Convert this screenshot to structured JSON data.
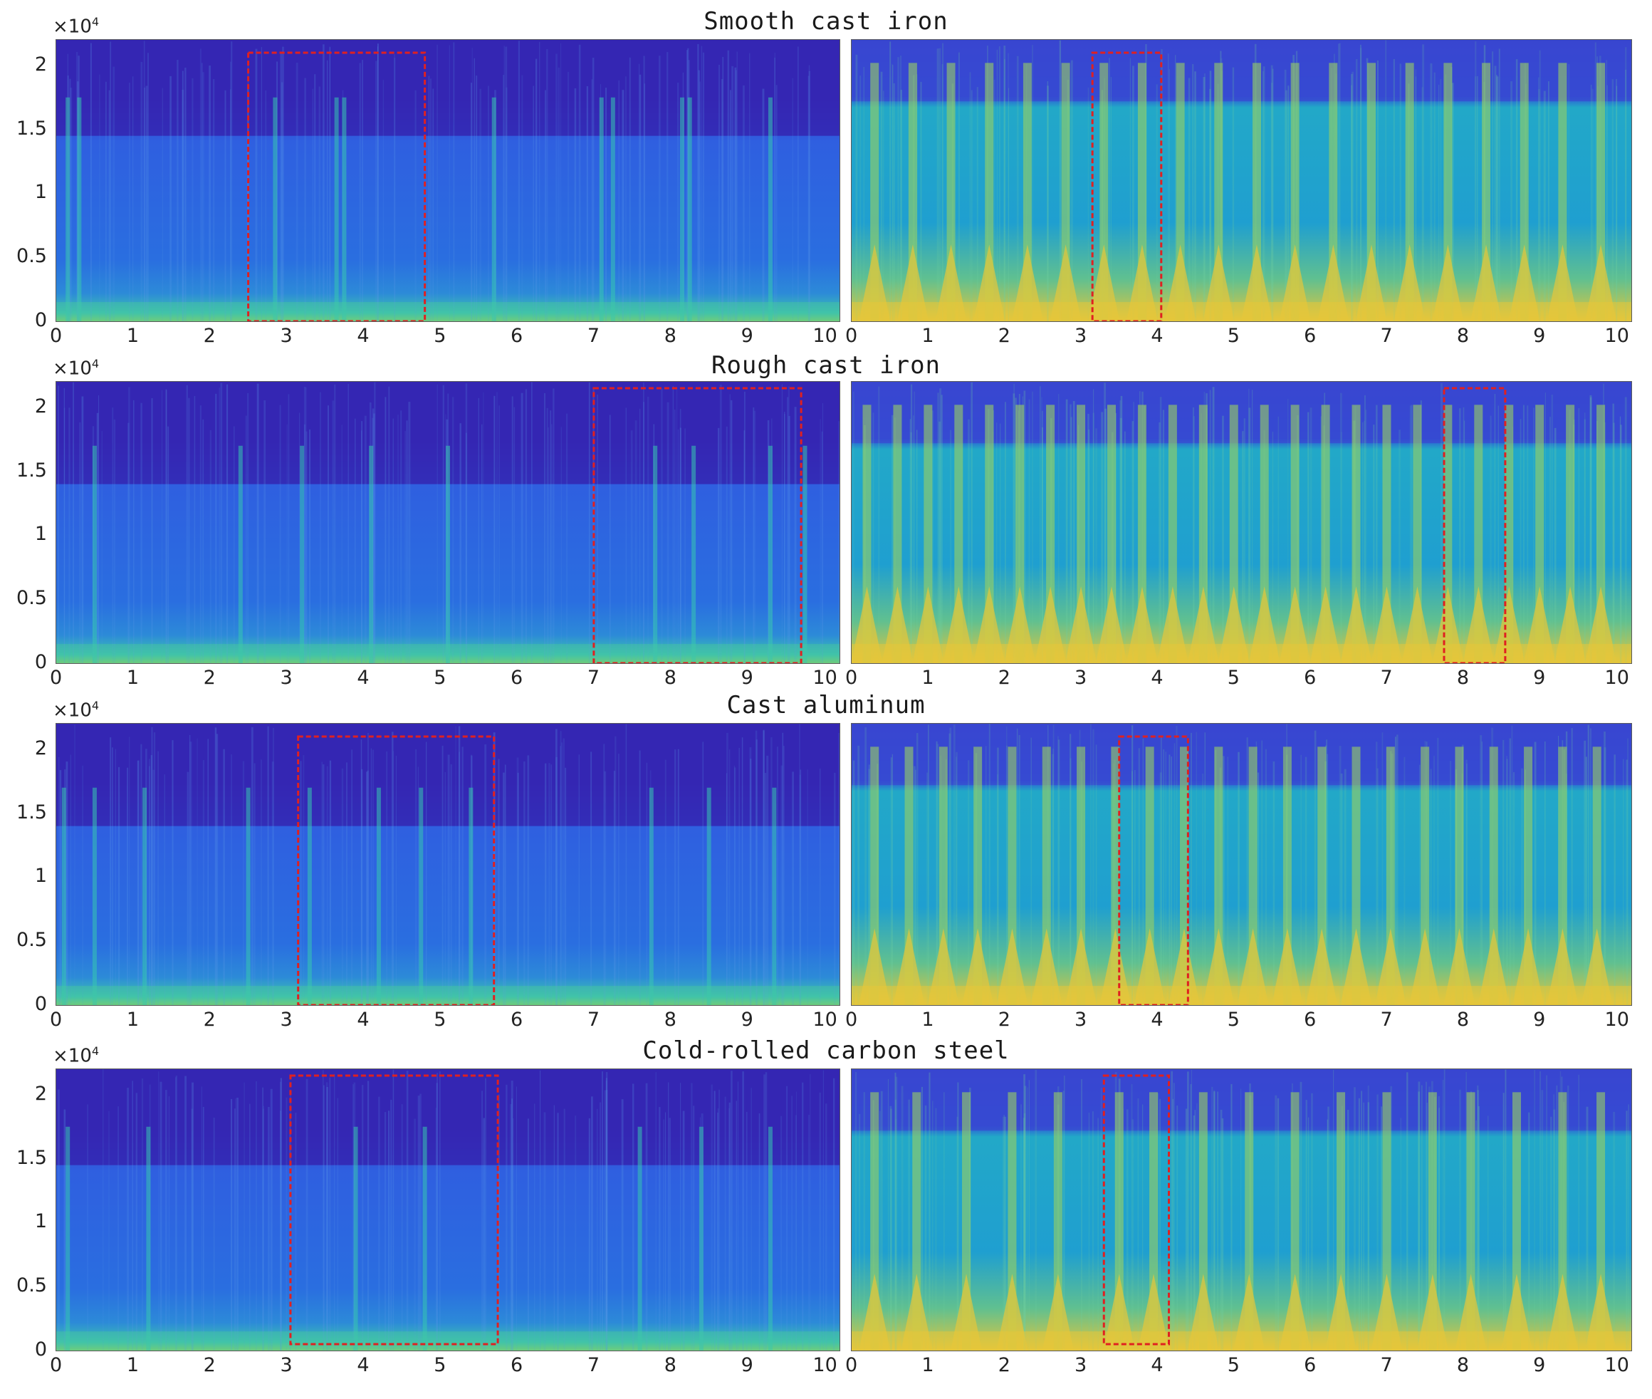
{
  "chart_data": [
    {
      "type": "heatmap",
      "title": "Smooth cast iron",
      "panels": [
        {
          "exponent_label": "×10",
          "exponent": "4",
          "x_ticks": [
            "0",
            "1",
            "2",
            "3",
            "4",
            "5",
            "6",
            "7",
            "8",
            "9",
            "10"
          ],
          "y_ticks": [
            "0",
            "0.5",
            "1",
            "1.5",
            "2"
          ],
          "xlim": [
            0,
            10.2
          ],
          "ylim": [
            0,
            2.2
          ],
          "highlight": {
            "x_start": 2.5,
            "x_end": 4.8,
            "y_start": 0,
            "y_end": 2.1
          },
          "style": "dark",
          "top_edge": 1.45,
          "bursts": [
            0.15,
            0.3,
            2.85,
            3.65,
            3.75,
            5.7,
            7.1,
            7.25,
            8.15,
            8.25,
            9.3
          ]
        },
        {
          "x_ticks": [
            "0",
            "1",
            "2",
            "3",
            "4",
            "5",
            "6",
            "7",
            "8",
            "9",
            "10"
          ],
          "y_ticks": [],
          "xlim": [
            0,
            10.2
          ],
          "ylim": [
            0,
            2.2
          ],
          "highlight": {
            "x_start": 3.15,
            "x_end": 4.05,
            "y_start": 0,
            "y_end": 2.1
          },
          "style": "bright",
          "top_edge": 1.72,
          "bursts": [
            0.3,
            0.8,
            1.3,
            1.8,
            2.3,
            2.8,
            3.3,
            3.8,
            4.3,
            4.8,
            5.3,
            5.8,
            6.3,
            6.8,
            7.3,
            7.8,
            8.3,
            8.8,
            9.3,
            9.8
          ]
        }
      ]
    },
    {
      "type": "heatmap",
      "title": "Rough cast iron",
      "panels": [
        {
          "exponent_label": "×10",
          "exponent": "4",
          "x_ticks": [
            "0",
            "1",
            "2",
            "3",
            "4",
            "5",
            "6",
            "7",
            "8",
            "9",
            "10"
          ],
          "y_ticks": [
            "0",
            "0.5",
            "1",
            "1.5",
            "2"
          ],
          "xlim": [
            0,
            10.2
          ],
          "ylim": [
            0,
            2.2
          ],
          "highlight": {
            "x_start": 7.0,
            "x_end": 9.7,
            "y_start": 0,
            "y_end": 2.15
          },
          "style": "dark",
          "top_edge": 1.4,
          "bursts": [
            0.5,
            2.4,
            3.2,
            4.1,
            5.1,
            7.8,
            8.3,
            9.3,
            9.75
          ]
        },
        {
          "x_ticks": [
            "0",
            "1",
            "2",
            "3",
            "4",
            "5",
            "6",
            "7",
            "8",
            "9",
            "10"
          ],
          "y_ticks": [],
          "xlim": [
            0,
            10.2
          ],
          "ylim": [
            0,
            2.2
          ],
          "highlight": {
            "x_start": 7.75,
            "x_end": 8.55,
            "y_start": 0,
            "y_end": 2.15
          },
          "style": "bright",
          "top_edge": 1.72,
          "bursts": [
            0.2,
            0.6,
            1.0,
            1.4,
            1.8,
            2.2,
            2.6,
            3.0,
            3.4,
            3.8,
            4.2,
            4.6,
            5.0,
            5.4,
            5.8,
            6.2,
            6.6,
            7.0,
            7.4,
            7.8,
            8.2,
            8.6,
            9.0,
            9.4,
            9.8
          ]
        }
      ]
    },
    {
      "type": "heatmap",
      "title": "Cast aluminum",
      "panels": [
        {
          "exponent_label": "×10",
          "exponent": "4",
          "x_ticks": [
            "0",
            "1",
            "2",
            "3",
            "4",
            "5",
            "6",
            "7",
            "8",
            "9",
            "10"
          ],
          "y_ticks": [
            "0",
            "0.5",
            "1",
            "1.5",
            "2"
          ],
          "xlim": [
            0,
            10.2
          ],
          "ylim": [
            0,
            2.2
          ],
          "highlight": {
            "x_start": 3.15,
            "x_end": 5.7,
            "y_start": 0,
            "y_end": 2.1
          },
          "style": "dark",
          "top_edge": 1.4,
          "bursts": [
            0.1,
            0.5,
            1.15,
            2.5,
            3.3,
            4.2,
            4.75,
            5.4,
            7.75,
            8.5,
            9.35
          ]
        },
        {
          "x_ticks": [
            "0",
            "1",
            "2",
            "3",
            "4",
            "5",
            "6",
            "7",
            "8",
            "9",
            "10"
          ],
          "y_ticks": [],
          "xlim": [
            0,
            10.2
          ],
          "ylim": [
            0,
            2.2
          ],
          "highlight": {
            "x_start": 3.5,
            "x_end": 4.4,
            "y_start": 0,
            "y_end": 2.1
          },
          "style": "bright",
          "top_edge": 1.72,
          "bursts": [
            0.3,
            0.75,
            1.2,
            1.65,
            2.1,
            2.55,
            3.0,
            3.45,
            3.9,
            4.35,
            4.8,
            5.25,
            5.7,
            6.15,
            6.6,
            7.05,
            7.5,
            7.95,
            8.4,
            8.85,
            9.3,
            9.75
          ]
        }
      ]
    },
    {
      "type": "heatmap",
      "title": "Cold-rolled carbon steel",
      "panels": [
        {
          "exponent_label": "×10",
          "exponent": "4",
          "x_ticks": [
            "0",
            "1",
            "2",
            "3",
            "4",
            "5",
            "6",
            "7",
            "8",
            "9",
            "10"
          ],
          "y_ticks": [
            "0",
            "0.5",
            "1",
            "1.5",
            "2"
          ],
          "xlim": [
            0,
            10.2
          ],
          "ylim": [
            0,
            2.2
          ],
          "highlight": {
            "x_start": 3.05,
            "x_end": 5.75,
            "y_start": 0.05,
            "y_end": 2.15
          },
          "style": "dark",
          "top_edge": 1.45,
          "bursts": [
            0.15,
            1.2,
            3.9,
            4.8,
            7.6,
            8.4,
            9.3
          ]
        },
        {
          "x_ticks": [
            "0",
            "1",
            "2",
            "3",
            "4",
            "5",
            "6",
            "7",
            "8",
            "9",
            "10"
          ],
          "y_ticks": [],
          "xlim": [
            0,
            10.2
          ],
          "ylim": [
            0,
            2.2
          ],
          "highlight": {
            "x_start": 3.3,
            "x_end": 4.15,
            "y_start": 0.05,
            "y_end": 2.15
          },
          "style": "bright",
          "top_edge": 1.72,
          "bursts": [
            0.3,
            0.85,
            1.5,
            2.1,
            2.7,
            3.5,
            3.95,
            4.6,
            5.2,
            5.8,
            6.4,
            7.0,
            7.6,
            8.1,
            8.7,
            9.3,
            9.8
          ]
        }
      ]
    }
  ],
  "colors": {
    "dark_top": "#3a2fc0",
    "dark_mid": "#2f5fe0",
    "dark_low": "#2c8ad8",
    "bright_top": "#3050d8",
    "bright_mid": "#1f9fd0",
    "bright_low": "#e6c63a",
    "burst": "#36c6b0",
    "highlight": "#e02020"
  }
}
